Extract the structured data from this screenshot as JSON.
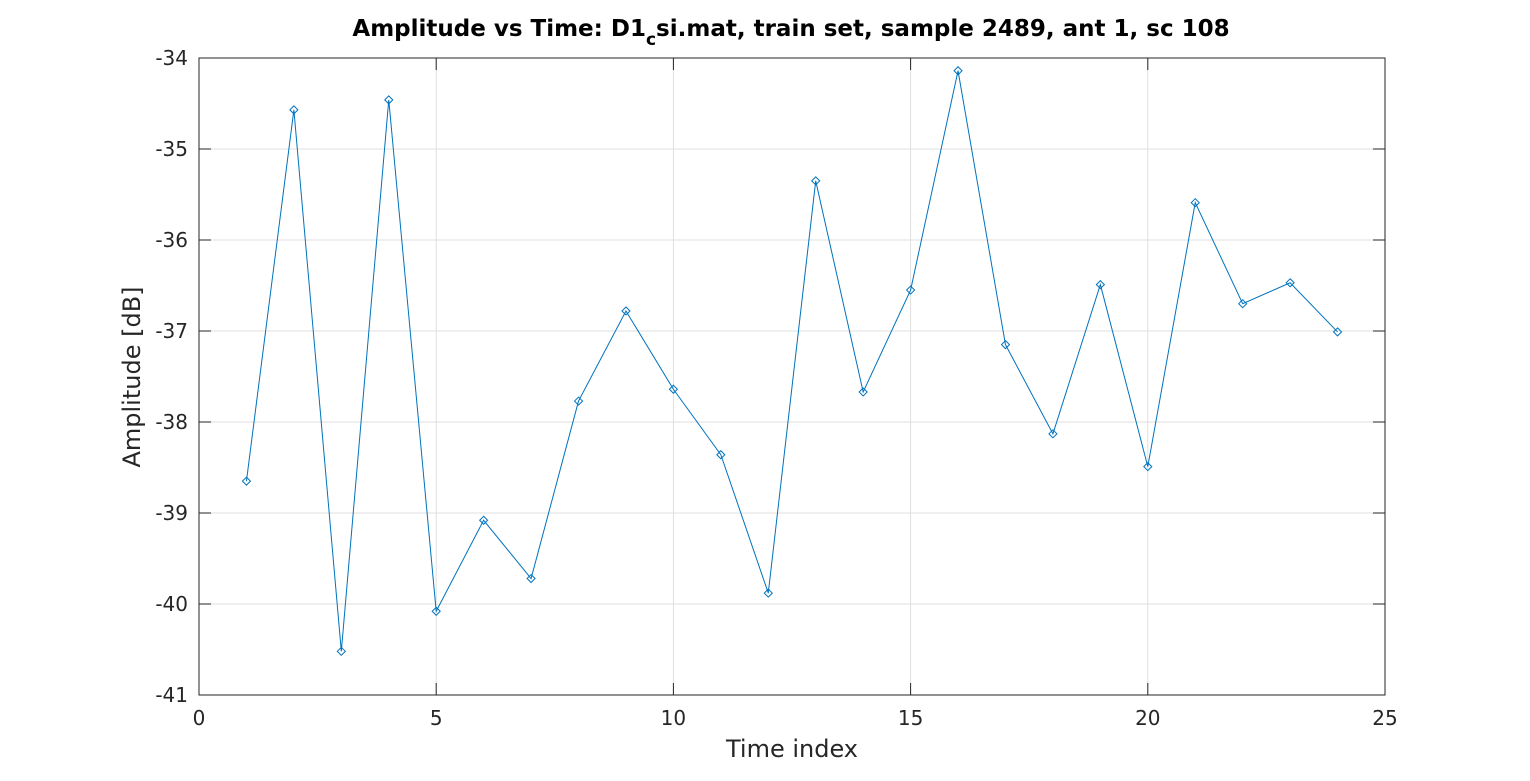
{
  "chart_data": {
    "type": "line",
    "title": {
      "main_before": "Amplitude vs Time: D1",
      "subscript": "c",
      "main_after": "si.mat, train set, sample 2489, ant 1, sc 108"
    },
    "xlabel": "Time index",
    "ylabel": "Amplitude [dB]",
    "xlim": [
      0,
      25
    ],
    "ylim": [
      -41,
      -34
    ],
    "xticks": [
      0,
      5,
      10,
      15,
      20,
      25
    ],
    "yticks": [
      -41,
      -40,
      -39,
      -38,
      -37,
      -36,
      -35,
      -34
    ],
    "grid": true,
    "marker": "diamond",
    "line_color": "#0072BD",
    "x": [
      1,
      2,
      3,
      4,
      5,
      6,
      7,
      8,
      9,
      10,
      11,
      12,
      13,
      14,
      15,
      16,
      17,
      18,
      19,
      20,
      21,
      22,
      23,
      24
    ],
    "series": [
      {
        "values": [
          -38.65,
          -34.57,
          -40.52,
          -34.46,
          -40.08,
          -39.08,
          -39.72,
          -37.77,
          -36.78,
          -37.64,
          -38.36,
          -39.88,
          -35.35,
          -37.67,
          -36.55,
          -34.14,
          -37.15,
          -38.13,
          -36.49,
          -38.49,
          -35.59,
          -36.7,
          -36.47,
          -37.01
        ]
      }
    ]
  }
}
